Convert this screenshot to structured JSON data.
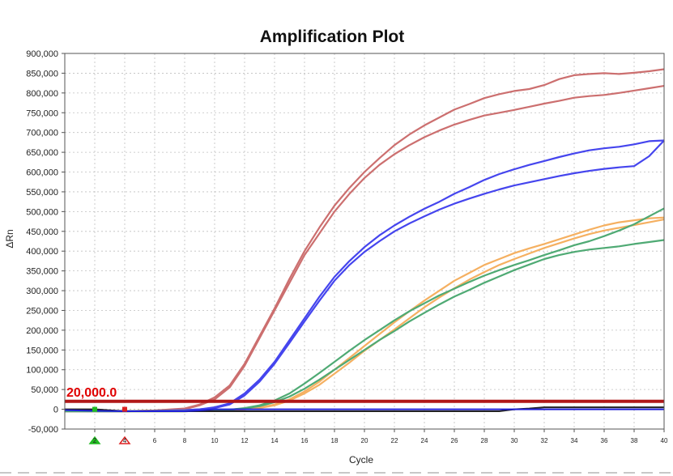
{
  "chart_data": {
    "type": "line",
    "title": "Amplification Plot",
    "xlabel": "Cycle",
    "ylabel": "ΔRn",
    "xlim": [
      0,
      40
    ],
    "ylim": [
      -50000,
      900000
    ],
    "x_ticks": [
      2,
      4,
      6,
      8,
      10,
      12,
      14,
      16,
      18,
      20,
      22,
      24,
      26,
      28,
      30,
      32,
      34,
      36,
      38,
      40
    ],
    "y_ticks": [
      -50000,
      0,
      50000,
      100000,
      150000,
      200000,
      250000,
      300000,
      350000,
      400000,
      450000,
      500000,
      550000,
      600000,
      650000,
      700000,
      750000,
      800000,
      850000,
      900000
    ],
    "y_tick_labels": [
      "-50,000",
      "0",
      "50,000",
      "100,000",
      "150,000",
      "200,000",
      "250,000",
      "300,000",
      "350,000",
      "400,000",
      "450,000",
      "500,000",
      "550,000",
      "600,000",
      "650,000",
      "700,000",
      "750,000",
      "800,000",
      "850,000",
      "900,000"
    ],
    "grid": true,
    "threshold": {
      "value": 20000,
      "label": "20,000.0",
      "color": "#b01818"
    },
    "baseline_markers": [
      {
        "cycle": 2,
        "color": "#22bb22",
        "shape": "triangle"
      },
      {
        "cycle": 4,
        "color": "#dd2222",
        "shape": "triangle"
      }
    ],
    "x": [
      0,
      2,
      4,
      6,
      8,
      9,
      10,
      11,
      12,
      13,
      14,
      15,
      16,
      17,
      18,
      19,
      20,
      21,
      22,
      23,
      24,
      25,
      26,
      27,
      28,
      29,
      30,
      31,
      32,
      33,
      34,
      35,
      36,
      37,
      38,
      39,
      40
    ],
    "series": [
      {
        "name": "red-1",
        "color": "#cc6f6f",
        "values": [
          -5000,
          -5000,
          -5000,
          -3000,
          2000,
          12000,
          30000,
          60000,
          115000,
          185000,
          255000,
          330000,
          400000,
          460000,
          515000,
          560000,
          600000,
          635000,
          668000,
          695000,
          718000,
          738000,
          758000,
          772000,
          787000,
          797000,
          805000,
          810000,
          820000,
          835000,
          845000,
          848000,
          850000,
          848000,
          851000,
          855000,
          860000
        ]
      },
      {
        "name": "red-2",
        "color": "#cc6f6f",
        "values": [
          -5000,
          -5000,
          -5000,
          -3000,
          0,
          10000,
          25000,
          55000,
          110000,
          180000,
          250000,
          320000,
          390000,
          445000,
          500000,
          545000,
          585000,
          618000,
          645000,
          668000,
          688000,
          705000,
          720000,
          732000,
          743000,
          750000,
          757000,
          765000,
          773000,
          780000,
          788000,
          792000,
          795000,
          800000,
          806000,
          812000,
          818000
        ]
      },
      {
        "name": "blue-1",
        "color": "#4545ee",
        "values": [
          -5000,
          -5000,
          -5000,
          -4000,
          -2000,
          0,
          5000,
          15000,
          40000,
          75000,
          120000,
          175000,
          230000,
          285000,
          335000,
          375000,
          410000,
          440000,
          465000,
          487000,
          507000,
          525000,
          545000,
          562000,
          580000,
          595000,
          607000,
          618000,
          628000,
          638000,
          647000,
          655000,
          660000,
          664000,
          670000,
          678000,
          680000
        ]
      },
      {
        "name": "blue-2",
        "color": "#4545ee",
        "values": [
          -5000,
          -5000,
          -5000,
          -4000,
          -2000,
          0,
          3000,
          12000,
          35000,
          70000,
          115000,
          168000,
          222000,
          275000,
          325000,
          365000,
          398000,
          425000,
          450000,
          470000,
          488000,
          505000,
          520000,
          533000,
          545000,
          556000,
          566000,
          574000,
          582000,
          590000,
          597000,
          603000,
          608000,
          612000,
          615000,
          640000,
          680000
        ]
      },
      {
        "name": "orange-1",
        "color": "#f5b061",
        "values": [
          -5000,
          -5000,
          -5000,
          -5000,
          -5000,
          -4000,
          -3000,
          -2000,
          0,
          4000,
          12000,
          25000,
          45000,
          70000,
          100000,
          130000,
          160000,
          190000,
          220000,
          248000,
          275000,
          300000,
          325000,
          345000,
          365000,
          380000,
          395000,
          407000,
          418000,
          430000,
          442000,
          454000,
          465000,
          473000,
          478000,
          483000,
          485000
        ]
      },
      {
        "name": "orange-2",
        "color": "#f5b061",
        "values": [
          -5000,
          -5000,
          -5000,
          -5000,
          -5000,
          -4000,
          -3000,
          -2000,
          0,
          3000,
          10000,
          22000,
          40000,
          62000,
          90000,
          118000,
          148000,
          175000,
          202000,
          230000,
          258000,
          283000,
          306000,
          328000,
          347000,
          365000,
          380000,
          394000,
          408000,
          420000,
          432000,
          443000,
          452000,
          459000,
          466000,
          473000,
          480000
        ]
      },
      {
        "name": "green-1",
        "color": "#4faa74",
        "values": [
          -5000,
          -5000,
          -5000,
          -5000,
          -5000,
          -4000,
          -3000,
          -1000,
          3000,
          10000,
          22000,
          40000,
          65000,
          92000,
          120000,
          148000,
          175000,
          200000,
          225000,
          248000,
          268000,
          288000,
          305000,
          322000,
          338000,
          352000,
          365000,
          377000,
          390000,
          402000,
          415000,
          425000,
          438000,
          452000,
          468000,
          488000,
          508000
        ]
      },
      {
        "name": "green-2",
        "color": "#4faa74",
        "values": [
          -5000,
          -5000,
          -5000,
          -5000,
          -5000,
          -4000,
          -3000,
          -1000,
          2000,
          8000,
          18000,
          32000,
          52000,
          75000,
          100000,
          125000,
          150000,
          175000,
          198000,
          222000,
          244000,
          265000,
          285000,
          302000,
          320000,
          336000,
          352000,
          366000,
          380000,
          390000,
          398000,
          404000,
          408000,
          412000,
          418000,
          423000,
          428000
        ]
      },
      {
        "name": "baseline-black",
        "color": "#222222",
        "values": [
          0,
          0,
          -5000,
          -5000,
          -5000,
          -5000,
          -5000,
          -5000,
          -5000,
          -5000,
          -5000,
          -5000,
          -5000,
          -5000,
          -5000,
          -5000,
          -5000,
          -5000,
          -5000,
          -5000,
          -5000,
          -5000,
          -5000,
          -5000,
          -5000,
          -5000,
          0,
          2000,
          5000,
          5000,
          5000,
          5000,
          5000,
          5000,
          5000,
          5000,
          5000
        ]
      },
      {
        "name": "baseline-blue",
        "color": "#1f1fd6",
        "values": [
          -2000,
          -4000,
          -5000,
          -5000,
          -5000,
          -3000,
          0,
          0,
          0,
          0,
          0,
          0,
          0,
          0,
          0,
          0,
          0,
          0,
          0,
          0,
          0,
          0,
          0,
          0,
          0,
          0,
          0,
          0,
          0,
          0,
          0,
          0,
          0,
          0,
          0,
          0,
          0
        ]
      }
    ]
  }
}
